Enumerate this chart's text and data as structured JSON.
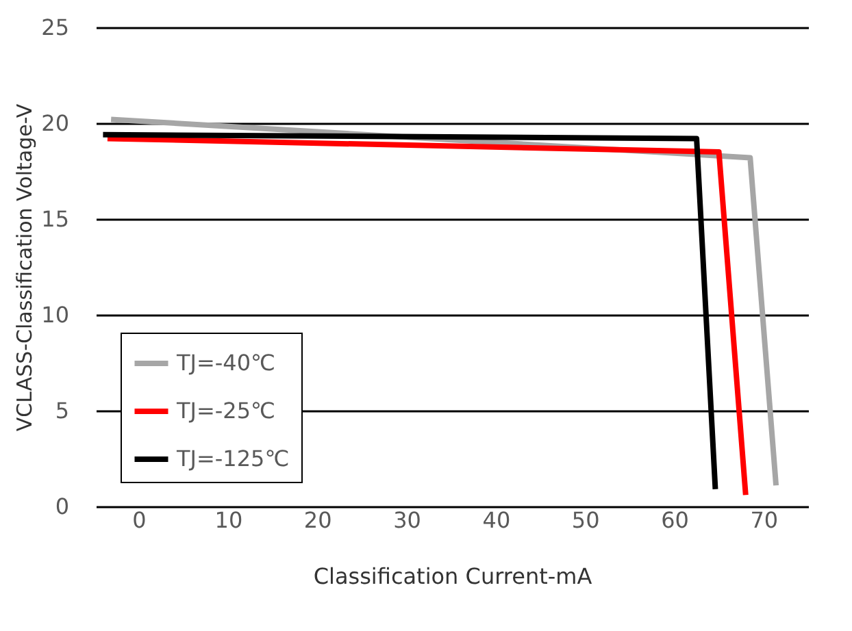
{
  "chart_data": {
    "type": "line",
    "xlabel": "Classification Current-mA",
    "ylabel": "VCLASS-Classification Voltage-V",
    "xlim": [
      -4.8,
      75
    ],
    "xticks": [
      0,
      10,
      20,
      30,
      40,
      50,
      60,
      70
    ],
    "ylim": [
      0,
      25
    ],
    "yticks": [
      0,
      5,
      10,
      15,
      20,
      25
    ],
    "grid": "y",
    "legend": "bottom left",
    "marker": "none",
    "line_style": "solid",
    "series": [
      {
        "name": "TJ=-40℃",
        "color": "#a6a6a6",
        "x": [
          -3.1,
          68.5,
          71.4
        ],
        "values": [
          20.2,
          18.2,
          1.1
        ]
      },
      {
        "name": "TJ=-25℃",
        "color": "#ff0000",
        "x": [
          -3.5,
          65,
          68
        ],
        "values": [
          19.2,
          18.5,
          0.6
        ]
      },
      {
        "name": "TJ=-125℃",
        "color": "#000000",
        "x": [
          -4,
          62.5,
          64.6
        ],
        "values": [
          19.4,
          19.2,
          0.9
        ]
      }
    ]
  }
}
